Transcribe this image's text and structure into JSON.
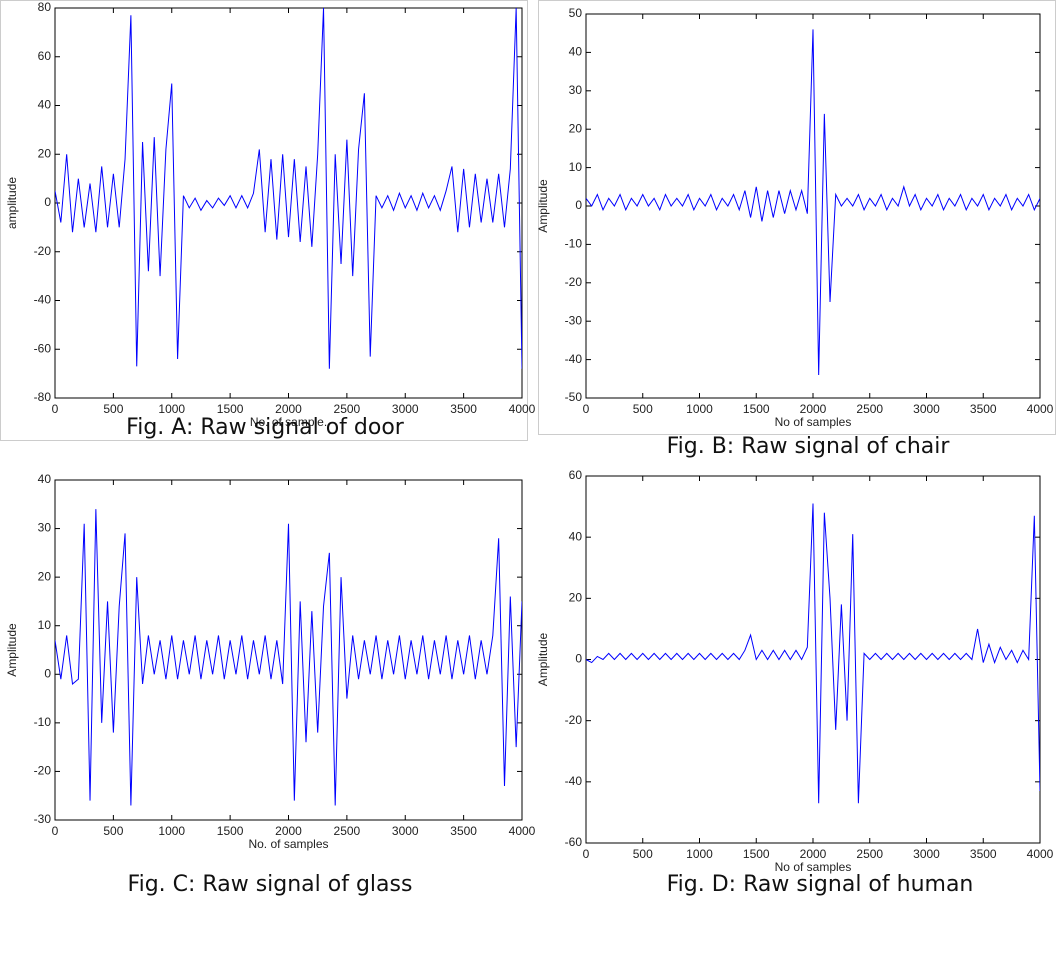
{
  "chart_data": [
    {
      "type": "line",
      "title": "Fig. A: Raw signal of door",
      "xlabel": "No. of sample.",
      "ylabel": "amplitude",
      "color": "#0000ff",
      "x": [
        0,
        50,
        100,
        150,
        200,
        250,
        300,
        350,
        400,
        450,
        500,
        550,
        600,
        650,
        700,
        750,
        800,
        850,
        900,
        950,
        1000,
        1050,
        1100,
        1150,
        1200,
        1250,
        1300,
        1350,
        1400,
        1450,
        1500,
        1550,
        1600,
        1650,
        1700,
        1750,
        1800,
        1850,
        1900,
        1950,
        2000,
        2050,
        2100,
        2150,
        2200,
        2250,
        2300,
        2350,
        2400,
        2450,
        2500,
        2550,
        2600,
        2650,
        2700,
        2750,
        2800,
        2850,
        2900,
        2950,
        3000,
        3050,
        3100,
        3150,
        3200,
        3250,
        3300,
        3350,
        3400,
        3450,
        3500,
        3550,
        3600,
        3650,
        3700,
        3750,
        3800,
        3850,
        3900,
        3950,
        4000
      ],
      "values": [
        5,
        -8,
        20,
        -12,
        10,
        -10,
        8,
        -12,
        15,
        -10,
        12,
        -10,
        18,
        77,
        -67,
        25,
        -28,
        27,
        -30,
        22,
        49,
        -64,
        3,
        -2,
        2,
        -3,
        1,
        -2,
        2,
        -1,
        3,
        -2,
        3,
        -2,
        4,
        22,
        -12,
        18,
        -15,
        20,
        -14,
        18,
        -16,
        15,
        -18,
        20,
        80,
        -68,
        20,
        -25,
        26,
        -30,
        22,
        45,
        -63,
        3,
        -2,
        3,
        -3,
        4,
        -2,
        3,
        -3,
        4,
        -2,
        3,
        -3,
        5,
        15,
        -12,
        14,
        -10,
        12,
        -8,
        10,
        -8,
        12,
        -10,
        14,
        80,
        -68
      ],
      "xlim": [
        0,
        4000
      ],
      "xticks": [
        0,
        500,
        1000,
        1500,
        2000,
        2500,
        3000,
        3500,
        4000
      ],
      "ylim": [
        -80,
        80
      ],
      "yticks": [
        -80,
        -60,
        -40,
        -20,
        0,
        20,
        40,
        60,
        80
      ]
    },
    {
      "type": "line",
      "title": "Fig. B: Raw signal of chair",
      "xlabel": "No of samples",
      "ylabel": "Amplitude",
      "color": "#0000ff",
      "x": [
        0,
        50,
        100,
        150,
        200,
        250,
        300,
        350,
        400,
        450,
        500,
        550,
        600,
        650,
        700,
        750,
        800,
        850,
        900,
        950,
        1000,
        1050,
        1100,
        1150,
        1200,
        1250,
        1300,
        1350,
        1400,
        1450,
        1500,
        1550,
        1600,
        1650,
        1700,
        1750,
        1800,
        1850,
        1900,
        1950,
        2000,
        2050,
        2100,
        2150,
        2200,
        2250,
        2300,
        2350,
        2400,
        2450,
        2500,
        2550,
        2600,
        2650,
        2700,
        2750,
        2800,
        2850,
        2900,
        2950,
        3000,
        3050,
        3100,
        3150,
        3200,
        3250,
        3300,
        3350,
        3400,
        3450,
        3500,
        3550,
        3600,
        3650,
        3700,
        3750,
        3800,
        3850,
        3900,
        3950,
        4000
      ],
      "values": [
        2,
        0,
        3,
        -1,
        2,
        0,
        3,
        -1,
        2,
        0,
        3,
        0,
        2,
        -1,
        3,
        0,
        2,
        0,
        3,
        -1,
        2,
        0,
        3,
        -1,
        2,
        0,
        3,
        -1,
        4,
        -3,
        5,
        -4,
        4,
        -3,
        4,
        -2,
        4,
        -1,
        4,
        -2,
        46,
        -44,
        24,
        -25,
        3,
        0,
        2,
        0,
        3,
        -1,
        2,
        0,
        3,
        -1,
        2,
        0,
        5,
        0,
        3,
        -1,
        2,
        0,
        3,
        -1,
        2,
        0,
        3,
        -1,
        2,
        0,
        3,
        -1,
        2,
        0,
        3,
        -1,
        2,
        0,
        3,
        -1,
        2
      ],
      "xlim": [
        0,
        4000
      ],
      "xticks": [
        0,
        500,
        1000,
        1500,
        2000,
        2500,
        3000,
        3500,
        4000
      ],
      "ylim": [
        -50,
        50
      ],
      "yticks": [
        -50,
        -40,
        -30,
        -20,
        -10,
        0,
        10,
        20,
        30,
        40,
        50
      ]
    },
    {
      "type": "line",
      "title": "Fig. C: Raw signal of glass",
      "xlabel": "No. of samples",
      "ylabel": "Amplitude",
      "color": "#0000ff",
      "x": [
        0,
        50,
        100,
        150,
        200,
        250,
        300,
        350,
        400,
        450,
        500,
        550,
        600,
        650,
        700,
        750,
        800,
        850,
        900,
        950,
        1000,
        1050,
        1100,
        1150,
        1200,
        1250,
        1300,
        1350,
        1400,
        1450,
        1500,
        1550,
        1600,
        1650,
        1700,
        1750,
        1800,
        1850,
        1900,
        1950,
        2000,
        2050,
        2100,
        2150,
        2200,
        2250,
        2300,
        2350,
        2400,
        2450,
        2500,
        2550,
        2600,
        2650,
        2700,
        2750,
        2800,
        2850,
        2900,
        2950,
        3000,
        3050,
        3100,
        3150,
        3200,
        3250,
        3300,
        3350,
        3400,
        3450,
        3500,
        3550,
        3600,
        3650,
        3700,
        3750,
        3800,
        3850,
        3900,
        3950,
        4000
      ],
      "values": [
        7,
        -1,
        8,
        -2,
        -1,
        31,
        -26,
        34,
        -10,
        15,
        -12,
        14,
        29,
        -27,
        20,
        -2,
        8,
        0,
        7,
        -1,
        8,
        -1,
        7,
        0,
        8,
        -1,
        7,
        0,
        8,
        -1,
        7,
        0,
        8,
        -1,
        7,
        0,
        8,
        -1,
        7,
        -2,
        31,
        -26,
        15,
        -14,
        13,
        -12,
        14,
        25,
        -27,
        20,
        -5,
        8,
        -1,
        7,
        0,
        8,
        -1,
        7,
        0,
        8,
        -1,
        7,
        0,
        8,
        -1,
        7,
        0,
        8,
        -1,
        7,
        0,
        8,
        -1,
        7,
        0,
        8,
        28,
        -23,
        16,
        -15,
        15
      ],
      "xlim": [
        0,
        4000
      ],
      "xticks": [
        0,
        500,
        1000,
        1500,
        2000,
        2500,
        3000,
        3500,
        4000
      ],
      "ylim": [
        -30,
        40
      ],
      "yticks": [
        -30,
        -20,
        -10,
        0,
        10,
        20,
        30,
        40
      ]
    },
    {
      "type": "line",
      "title": "Fig. D: Raw signal of human",
      "xlabel": "No of samples",
      "ylabel": "Amplitude",
      "color": "#0000ff",
      "x": [
        0,
        50,
        100,
        150,
        200,
        250,
        300,
        350,
        400,
        450,
        500,
        550,
        600,
        650,
        700,
        750,
        800,
        850,
        900,
        950,
        1000,
        1050,
        1100,
        1150,
        1200,
        1250,
        1300,
        1350,
        1400,
        1450,
        1500,
        1550,
        1600,
        1650,
        1700,
        1750,
        1800,
        1850,
        1900,
        1950,
        2000,
        2050,
        2100,
        2150,
        2200,
        2250,
        2300,
        2350,
        2400,
        2450,
        2500,
        2550,
        2600,
        2650,
        2700,
        2750,
        2800,
        2850,
        2900,
        2950,
        3000,
        3050,
        3100,
        3150,
        3200,
        3250,
        3300,
        3350,
        3400,
        3450,
        3500,
        3550,
        3600,
        3650,
        3700,
        3750,
        3800,
        3850,
        3900,
        3950,
        4000
      ],
      "values": [
        0,
        -1,
        1,
        0,
        2,
        0,
        2,
        0,
        2,
        0,
        2,
        0,
        2,
        0,
        2,
        0,
        2,
        0,
        2,
        0,
        2,
        0,
        2,
        0,
        2,
        0,
        2,
        0,
        3,
        8,
        0,
        3,
        0,
        3,
        0,
        3,
        0,
        3,
        0,
        4,
        51,
        -47,
        48,
        20,
        -23,
        18,
        -20,
        41,
        -47,
        2,
        0,
        2,
        0,
        2,
        0,
        2,
        0,
        2,
        0,
        2,
        0,
        2,
        0,
        2,
        0,
        2,
        0,
        2,
        0,
        10,
        -1,
        5,
        -1,
        4,
        0,
        3,
        -1,
        3,
        0,
        47,
        -43
      ],
      "xlim": [
        0,
        4000
      ],
      "xticks": [
        0,
        500,
        1000,
        1500,
        2000,
        2500,
        3000,
        3500,
        4000
      ],
      "ylim": [
        -60,
        60
      ],
      "yticks": [
        -60,
        -40,
        -20,
        0,
        20,
        40,
        60
      ]
    }
  ]
}
